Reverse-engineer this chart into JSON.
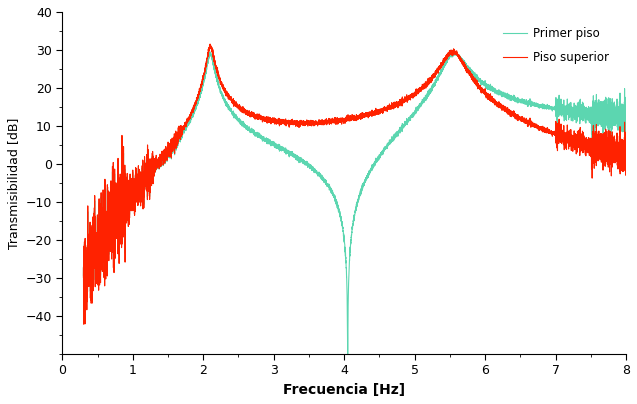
{
  "xlabel": "Frecuencia [Hz]",
  "ylabel": "Transmisibilidad [dB]",
  "xlim": [
    0,
    8
  ],
  "ylim": [
    -50,
    40
  ],
  "yticks": [
    -40,
    -30,
    -20,
    -10,
    0,
    10,
    20,
    30,
    40
  ],
  "xticks": [
    0,
    1,
    2,
    3,
    4,
    5,
    6,
    7,
    8
  ],
  "color_primer": "#5CD6B0",
  "color_superior": "#FF2200",
  "legend_labels": [
    "Primer piso",
    "Piso superior"
  ],
  "fn1": 2.1,
  "fn2": 5.55,
  "fanti": 4.05,
  "zeta1": 0.022,
  "zeta2": 0.026,
  "background_color": "#ffffff"
}
